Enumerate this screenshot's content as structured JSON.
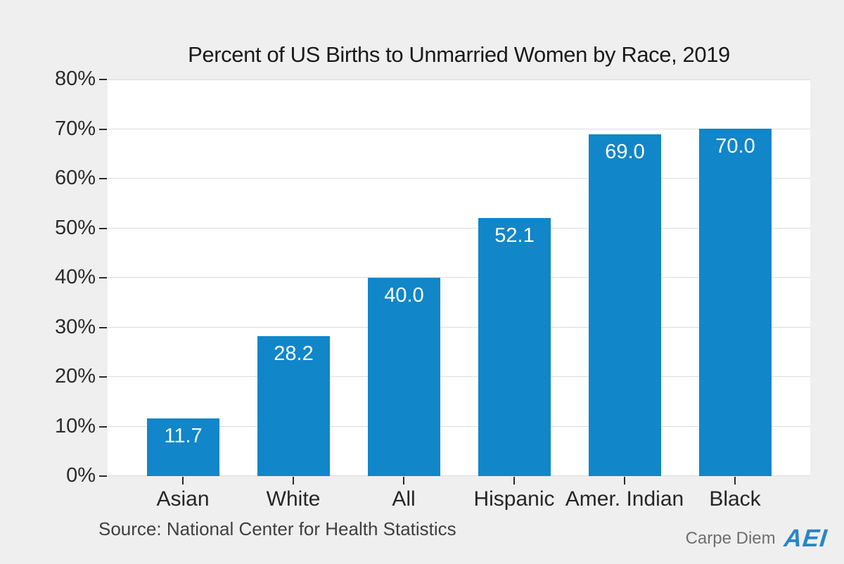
{
  "page": {
    "background_color": "#efefef",
    "plot_background_color": "#ffffff",
    "gridline_color": "#dcdcdc",
    "tick_color": "#2b2b2b"
  },
  "chart_data": {
    "type": "bar",
    "title": "Percent of US Births to Unmarried Women by Race, 2019",
    "categories": [
      "Asian",
      "White",
      "All",
      "Hispanic",
      "Amer. Indian",
      "Black"
    ],
    "values": [
      11.7,
      28.2,
      40.0,
      52.1,
      69.0,
      70.0
    ],
    "value_labels": [
      "11.7",
      "28.2",
      "40.0",
      "52.1",
      "69.0",
      "70.0"
    ],
    "xlabel": "",
    "ylabel": "",
    "ylim": [
      0,
      80
    ],
    "y_tick_step": 10,
    "y_tick_labels": [
      "0%",
      "10%",
      "20%",
      "30%",
      "40%",
      "50%",
      "60%",
      "70%",
      "80%"
    ],
    "grid": "horizontal",
    "legend": "none",
    "bar_color": "#1186c9",
    "value_label_color": "#ffffff"
  },
  "footer": {
    "source": "Source: National Center for Health Statistics",
    "brand_text": "Carpe Diem",
    "brand_logo": "AEI"
  }
}
